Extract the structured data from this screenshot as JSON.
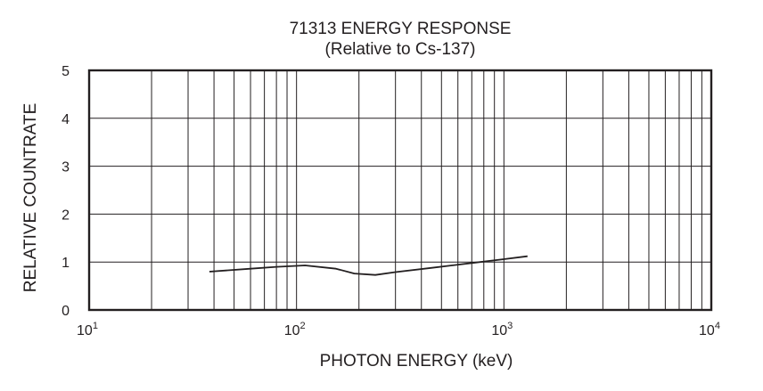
{
  "chart_data": {
    "type": "line",
    "title": "71313 ENERGY RESPONSE",
    "subtitle": "(Relative to Cs-137)",
    "xlabel": "PHOTON ENERGY (keV)",
    "ylabel": "RELATIVE COUNTRATE",
    "x_scale": "log",
    "xlim": [
      10,
      10000
    ],
    "ylim": [
      0,
      5
    ],
    "grid": true,
    "x_ticks": [
      {
        "base": "10",
        "exp": "1",
        "value": 10
      },
      {
        "base": "10",
        "exp": "2",
        "value": 100
      },
      {
        "base": "10",
        "exp": "3",
        "value": 1000
      },
      {
        "base": "10",
        "exp": "4",
        "value": 10000
      }
    ],
    "y_ticks": [
      "0",
      "1",
      "2",
      "3",
      "4",
      "5"
    ],
    "series": [
      {
        "x": [
          38,
          60,
          80,
          110,
          155,
          190,
          240,
          300,
          450,
          700,
          1000,
          1300
        ],
        "y": [
          0.8,
          0.86,
          0.9,
          0.93,
          0.86,
          0.76,
          0.73,
          0.79,
          0.88,
          0.98,
          1.06,
          1.12
        ],
        "color": "#231f20"
      }
    ]
  }
}
